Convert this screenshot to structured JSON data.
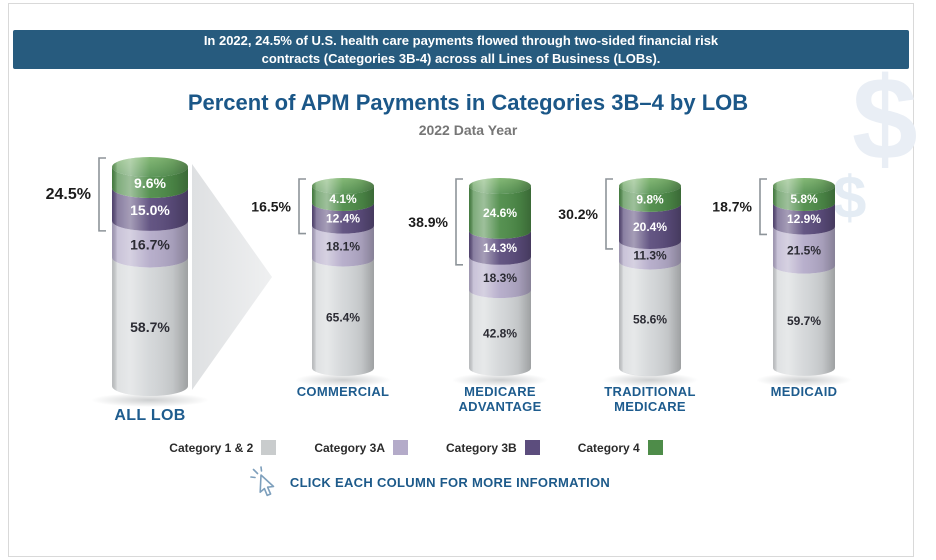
{
  "banner": {
    "line1": "In 2022, 24.5% of U.S. health care payments flowed through two-sided financial risk",
    "line2": "contracts (Categories 3B-4) across all Lines of Business (LOBs)."
  },
  "title": "Percent of APM Payments in Categories 3B–4 by LOB",
  "subtitle": "2022 Data Year",
  "watermark": {
    "symbol": "$"
  },
  "cta": {
    "label": "CLICK EACH COLUMN FOR MORE INFORMATION"
  },
  "legend": {
    "items": [
      {
        "label": "Category 1 & 2",
        "color": "#c9cccd"
      },
      {
        "label": "Category 3A",
        "color": "#b4abc9"
      },
      {
        "label": "Category 3B",
        "color": "#5c4d7d"
      },
      {
        "label": "Category 4",
        "color": "#4e8c49"
      }
    ]
  },
  "chart_data": {
    "type": "bar",
    "stacked": true,
    "shape": "cylinder",
    "title": "Percent of APM Payments in Categories 3B–4 by LOB",
    "subtitle": "2022 Data Year",
    "unit": "%",
    "segment_order_top_to_bottom": [
      "Category 4",
      "Category 3B",
      "Category 3A",
      "Category 1 & 2"
    ],
    "segment_colors": {
      "Category 4": "#4e8c49",
      "Category 3B": "#5c4d7d",
      "Category 3A": "#b4abc9",
      "Category 1 & 2": "#d3d6d8"
    },
    "columns": [
      {
        "label": "ALL LOB",
        "total_3b4": "24.5%",
        "values": {
          "Category 4": 9.6,
          "Category 3B": 15.0,
          "Category 3A": 16.7,
          "Category 1 & 2": 58.7
        }
      },
      {
        "label": "COMMERCIAL",
        "total_3b4": "16.5%",
        "values": {
          "Category 4": 4.1,
          "Category 3B": 12.4,
          "Category 3A": 18.1,
          "Category 1 & 2": 65.4
        }
      },
      {
        "label": "MEDICARE\nADVANTAGE",
        "total_3b4": "38.9%",
        "values": {
          "Category 4": 24.6,
          "Category 3B": 14.3,
          "Category 3A": 18.3,
          "Category 1 & 2": 42.8
        }
      },
      {
        "label": "TRADITIONAL\nMEDICARE",
        "total_3b4": "30.2%",
        "values": {
          "Category 4": 9.8,
          "Category 3B": 20.4,
          "Category 3A": 11.3,
          "Category 1 & 2": 58.6
        }
      },
      {
        "label": "MEDICAID",
        "total_3b4": "18.7%",
        "values": {
          "Category 4": 5.8,
          "Category 3B": 12.9,
          "Category 3A": 21.5,
          "Category 1 & 2": 59.7
        }
      }
    ]
  }
}
